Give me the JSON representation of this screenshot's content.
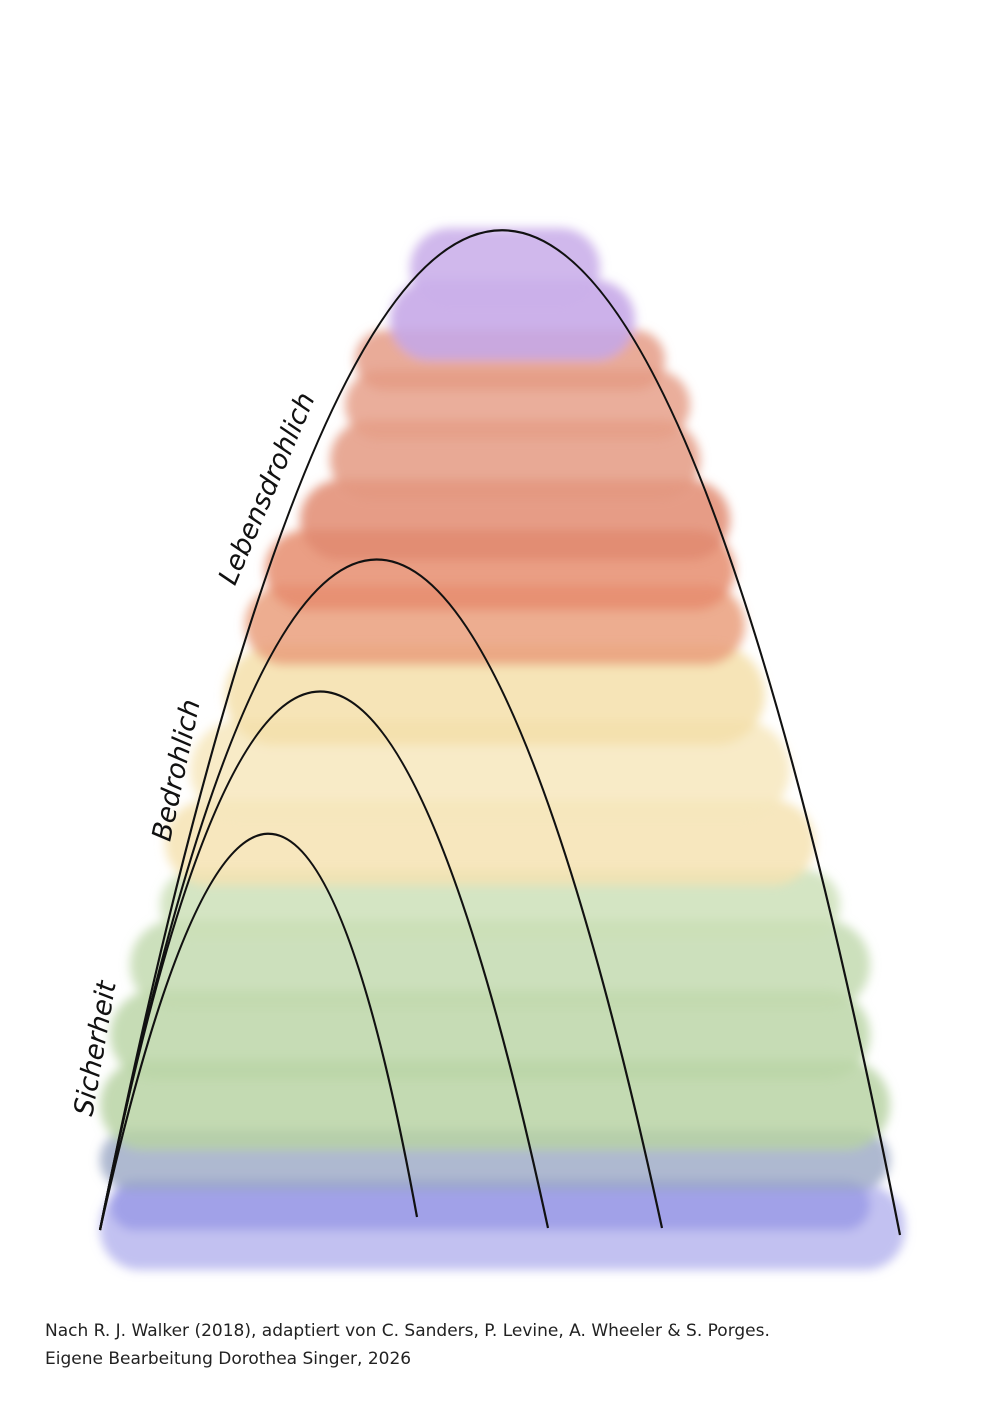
{
  "labels": {
    "top": "Lebensdrohlich",
    "middle": "Bedrohlich",
    "bottom": "Sicherheit"
  },
  "caption": [
    "Nach R. J. Walker (2018), adaptiert von C. Sanders, P. Levine, A. Wheeler & S. Porges.",
    "Eigene Bearbeitung Dorothea Singer, 2026"
  ]
}
